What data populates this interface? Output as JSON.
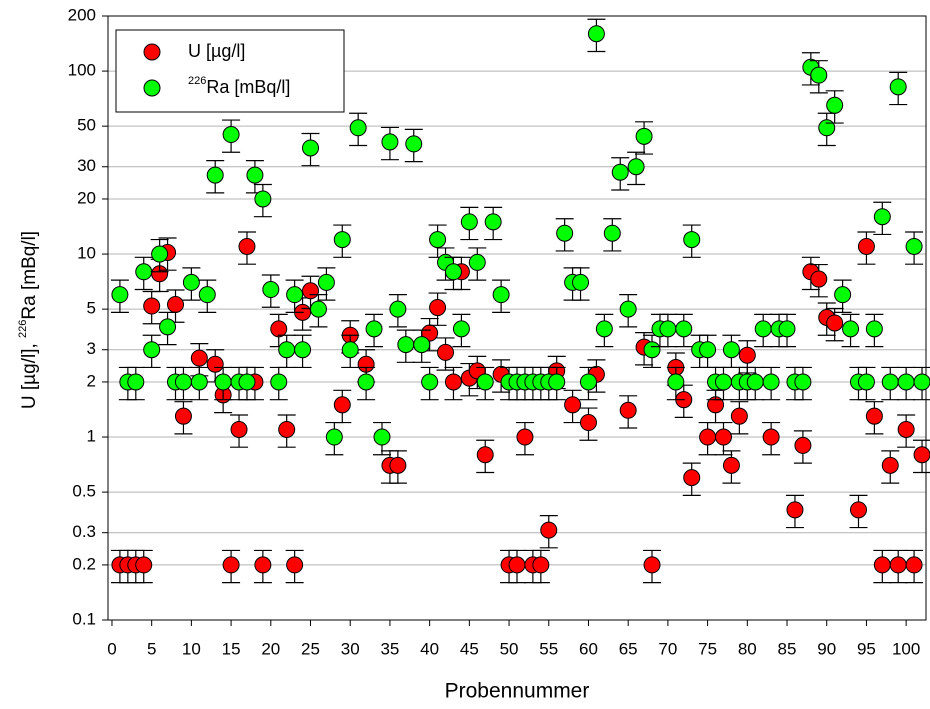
{
  "chart_data": {
    "type": "scatter",
    "x_label": "Probennummer",
    "y_label": "U [µg/l], 226Ra [mBq/l]",
    "x": [
      1,
      2,
      3,
      4,
      5,
      6,
      7,
      8,
      9,
      10,
      11,
      12,
      13,
      14,
      15,
      16,
      17,
      18,
      19,
      20,
      21,
      22,
      23,
      24,
      25,
      26,
      27,
      28,
      29,
      30,
      31,
      32,
      33,
      34,
      35,
      36,
      37,
      38,
      39,
      40,
      41,
      42,
      43,
      44,
      45,
      46,
      47,
      48,
      49,
      50,
      51,
      52,
      53,
      54,
      55,
      56,
      57,
      58,
      59,
      60,
      61,
      62,
      63,
      64,
      65,
      66,
      67,
      68,
      69,
      70,
      71,
      72,
      73,
      74,
      75,
      76,
      77,
      78,
      79,
      80,
      81,
      82,
      83,
      84,
      85,
      86,
      87,
      88,
      89,
      90,
      91,
      92,
      93,
      94,
      95,
      96,
      97,
      98,
      99,
      100,
      101,
      102
    ],
    "series": [
      {
        "name": "U [µg/l]",
        "color": "#ff0000",
        "values": [
          0.2,
          0.2,
          0.2,
          0.2,
          5.2,
          7.8,
          10.2,
          5.3,
          1.3,
          null,
          2.7,
          null,
          2.5,
          1.7,
          0.2,
          1.1,
          11,
          2,
          0.2,
          null,
          3.9,
          1.1,
          0.2,
          4.8,
          6.3,
          null,
          null,
          null,
          1.5,
          3.6,
          null,
          2.5,
          null,
          null,
          0.7,
          0.7,
          null,
          null,
          null,
          3.7,
          5.1,
          2.9,
          2,
          8,
          2.1,
          2.3,
          0.8,
          null,
          2.2,
          0.2,
          0.2,
          1,
          0.2,
          0.2,
          0.31,
          2.3,
          null,
          1.5,
          null,
          1.2,
          2.2,
          null,
          null,
          null,
          1.4,
          null,
          3.1,
          0.2,
          null,
          null,
          2.4,
          1.6,
          0.6,
          null,
          1,
          1.5,
          1,
          0.7,
          1.3,
          2.8,
          null,
          null,
          1,
          null,
          null,
          0.4,
          0.9,
          8,
          7.3,
          4.5,
          4.2,
          null,
          null,
          0.4,
          11,
          1.3,
          0.2,
          0.7,
          0.2,
          1.1,
          0.2,
          0.8
        ]
      },
      {
        "name": "226Ra [mBq/l]",
        "color": "#00ff00",
        "values": [
          6,
          2,
          2,
          8,
          3,
          10,
          4,
          2,
          2,
          7,
          2,
          6,
          27,
          2,
          45,
          2,
          2,
          27,
          20,
          6.4,
          2,
          3,
          6,
          3,
          38,
          5,
          7,
          1,
          12,
          3,
          49,
          2,
          3.9,
          1,
          41,
          5,
          3.2,
          40,
          3.2,
          2,
          12,
          9,
          8,
          3.9,
          15,
          9,
          2,
          15,
          6,
          2,
          2,
          2,
          2,
          2,
          2,
          2,
          13,
          7,
          7,
          2,
          160,
          3.9,
          13,
          28,
          5,
          30,
          44,
          3,
          3.9,
          3.9,
          2,
          3.9,
          12,
          3,
          3,
          2,
          2,
          3,
          2,
          2,
          2,
          3.9,
          2,
          3.9,
          3.9,
          2,
          2,
          105,
          95,
          49,
          65,
          6,
          3.9,
          2,
          2,
          3.9,
          16,
          2,
          82,
          2,
          11,
          2
        ]
      }
    ],
    "error_percent": 20,
    "xlim": [
      -0.5,
      102.5
    ],
    "xticks": [
      0,
      5,
      10,
      15,
      20,
      25,
      30,
      35,
      40,
      45,
      50,
      55,
      60,
      65,
      70,
      75,
      80,
      85,
      90,
      95,
      100
    ],
    "ylim": [
      0.1,
      200
    ],
    "yticks": [
      0.1,
      0.2,
      0.3,
      0.5,
      1,
      2,
      3,
      5,
      10,
      20,
      30,
      50,
      100,
      200
    ],
    "log_y": true,
    "grid": true,
    "legend": "upper-left"
  }
}
